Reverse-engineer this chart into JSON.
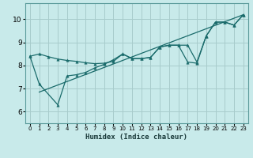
{
  "xlabel": "Humidex (Indice chaleur)",
  "bg_color": "#c8eaea",
  "grid_color": "#a8cccc",
  "line_color": "#1a6b6b",
  "xlim": [
    -0.5,
    23.5
  ],
  "ylim": [
    5.5,
    10.7
  ],
  "xticks": [
    0,
    1,
    2,
    3,
    4,
    5,
    6,
    7,
    8,
    9,
    10,
    11,
    12,
    13,
    14,
    15,
    16,
    17,
    18,
    19,
    20,
    21,
    22,
    23
  ],
  "yticks": [
    6,
    7,
    8,
    9,
    10
  ],
  "series1_x": [
    0,
    1,
    2,
    3,
    4,
    5,
    6,
    7,
    8,
    9,
    10,
    11,
    12,
    13,
    14,
    15,
    16,
    17,
    18,
    19,
    20,
    21,
    22,
    23
  ],
  "series1_y": [
    8.4,
    8.5,
    8.38,
    8.28,
    8.22,
    8.18,
    8.12,
    8.08,
    8.1,
    8.18,
    8.5,
    8.3,
    8.3,
    8.35,
    8.8,
    8.88,
    8.88,
    8.88,
    8.15,
    9.28,
    9.88,
    9.88,
    9.75,
    10.2
  ],
  "series2_x": [
    0,
    1,
    3,
    4,
    5,
    6,
    7,
    8,
    9,
    10,
    11,
    12,
    13,
    14,
    15,
    16,
    17,
    18,
    19,
    20,
    21,
    22,
    23
  ],
  "series2_y": [
    8.4,
    7.2,
    6.3,
    7.55,
    7.6,
    7.7,
    7.9,
    8.05,
    8.25,
    8.5,
    8.3,
    8.3,
    8.35,
    8.8,
    8.88,
    8.88,
    8.15,
    8.1,
    9.28,
    9.88,
    9.88,
    9.75,
    10.2
  ],
  "series3_x": [
    1,
    23
  ],
  "series3_y": [
    6.85,
    10.2
  ],
  "marker_size": 2.5,
  "line_width": 0.9
}
